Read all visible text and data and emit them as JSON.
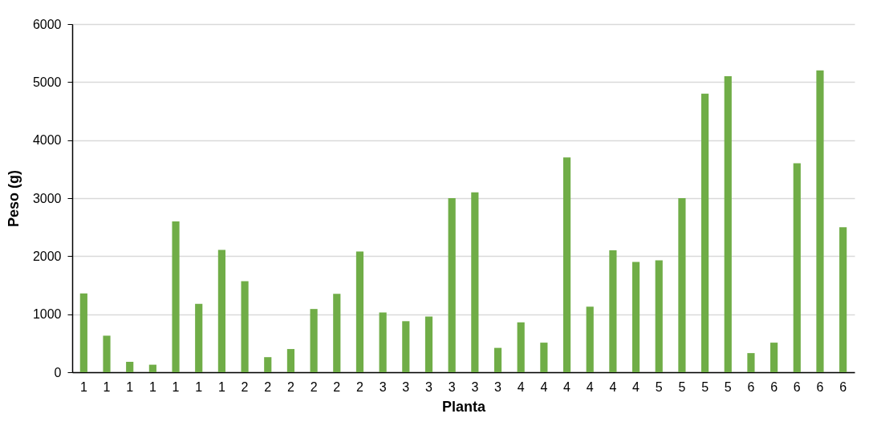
{
  "chart_data": {
    "type": "bar",
    "xlabel": "Planta",
    "ylabel": "Peso (g)",
    "categories": [
      "1",
      "1",
      "1",
      "1",
      "1",
      "1",
      "1",
      "2",
      "2",
      "2",
      "2",
      "2",
      "2",
      "3",
      "3",
      "3",
      "3",
      "3",
      "3",
      "4",
      "4",
      "4",
      "4",
      "4",
      "4",
      "5",
      "5",
      "5",
      "5",
      "6",
      "6",
      "6",
      "6",
      "6"
    ],
    "values": [
      1360,
      630,
      180,
      130,
      2600,
      1180,
      2110,
      1570,
      260,
      400,
      1090,
      1350,
      2080,
      1030,
      880,
      960,
      3000,
      3100,
      420,
      860,
      510,
      3700,
      1130,
      2100,
      1900,
      1930,
      3000,
      4800,
      5100,
      330,
      510,
      3600,
      5200,
      2500
    ],
    "color": "#70ad47",
    "ylim": [
      0,
      6000
    ],
    "yticks": [
      0,
      1000,
      2000,
      3000,
      4000,
      5000,
      6000
    ],
    "grid": "y"
  }
}
